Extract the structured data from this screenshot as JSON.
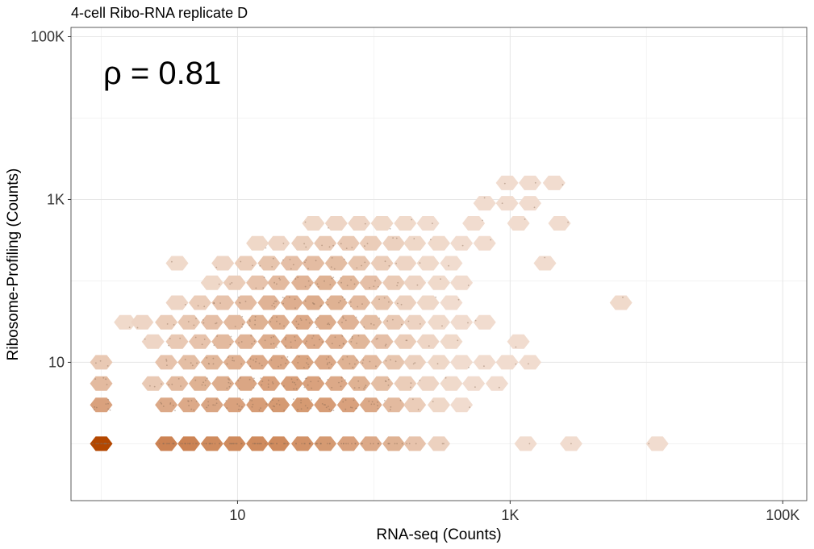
{
  "chart_data": {
    "type": "hexbin",
    "title": "4-cell Ribo-RNA replicate D",
    "xlabel": "RNA-seq (Counts)",
    "ylabel": "Ribosome-Profiling (Counts)",
    "annotation": "ρ = 0.81",
    "x_scale": "log10",
    "y_scale": "log10",
    "xlim": [
      0.6,
      150000
    ],
    "ylim": [
      0.2,
      130000
    ],
    "x_ticks": [
      {
        "value": 10,
        "label": "10"
      },
      {
        "value": 1000,
        "label": "1K"
      },
      {
        "value": 100000,
        "label": "100K"
      }
    ],
    "y_ticks": [
      {
        "value": 10,
        "label": "10"
      },
      {
        "value": 1000,
        "label": "1K"
      },
      {
        "value": 100000,
        "label": "100K"
      }
    ],
    "grid": true,
    "fill_low": "#f5e6dc",
    "fill_high": "#b34700",
    "point_color": "#8a6a55",
    "cells": [
      {
        "x": 1,
        "y": 1,
        "n": 1.0
      },
      {
        "x": 3,
        "y": 1,
        "n": 0.55
      },
      {
        "x": 4.4,
        "y": 1,
        "n": 0.55
      },
      {
        "x": 6.5,
        "y": 1,
        "n": 0.5
      },
      {
        "x": 9.5,
        "y": 1,
        "n": 0.5
      },
      {
        "x": 14,
        "y": 1,
        "n": 0.5
      },
      {
        "x": 20,
        "y": 1,
        "n": 0.5
      },
      {
        "x": 30,
        "y": 1,
        "n": 0.45
      },
      {
        "x": 44,
        "y": 1,
        "n": 0.4
      },
      {
        "x": 65,
        "y": 1,
        "n": 0.35
      },
      {
        "x": 95,
        "y": 1,
        "n": 0.3
      },
      {
        "x": 140,
        "y": 1,
        "n": 0.25
      },
      {
        "x": 200,
        "y": 1,
        "n": 0.15
      },
      {
        "x": 300,
        "y": 1,
        "n": 0.08
      },
      {
        "x": 1300,
        "y": 1,
        "n": 0.03
      },
      {
        "x": 2800,
        "y": 1,
        "n": 0.03
      },
      {
        "x": 12000,
        "y": 1,
        "n": 0.03
      },
      {
        "x": 1,
        "y": 3,
        "n": 0.35
      },
      {
        "x": 3,
        "y": 3,
        "n": 0.3
      },
      {
        "x": 4.4,
        "y": 3,
        "n": 0.3
      },
      {
        "x": 6.5,
        "y": 3,
        "n": 0.32
      },
      {
        "x": 9.5,
        "y": 3,
        "n": 0.35
      },
      {
        "x": 14,
        "y": 3,
        "n": 0.38
      },
      {
        "x": 20,
        "y": 3,
        "n": 0.4
      },
      {
        "x": 30,
        "y": 3,
        "n": 0.4
      },
      {
        "x": 44,
        "y": 3,
        "n": 0.38
      },
      {
        "x": 65,
        "y": 3,
        "n": 0.35
      },
      {
        "x": 95,
        "y": 3,
        "n": 0.3
      },
      {
        "x": 140,
        "y": 3,
        "n": 0.2
      },
      {
        "x": 200,
        "y": 3,
        "n": 0.1
      },
      {
        "x": 300,
        "y": 3,
        "n": 0.05
      },
      {
        "x": 440,
        "y": 3,
        "n": 0.03
      },
      {
        "x": 1,
        "y": 5.5,
        "n": 0.2
      },
      {
        "x": 2.4,
        "y": 5.5,
        "n": 0.12
      },
      {
        "x": 3.6,
        "y": 5.5,
        "n": 0.2
      },
      {
        "x": 5.3,
        "y": 5.5,
        "n": 0.25
      },
      {
        "x": 7.8,
        "y": 5.5,
        "n": 0.28
      },
      {
        "x": 11.5,
        "y": 5.5,
        "n": 0.32
      },
      {
        "x": 17,
        "y": 5.5,
        "n": 0.35
      },
      {
        "x": 25,
        "y": 5.5,
        "n": 0.37
      },
      {
        "x": 36,
        "y": 5.5,
        "n": 0.35
      },
      {
        "x": 53,
        "y": 5.5,
        "n": 0.3
      },
      {
        "x": 78,
        "y": 5.5,
        "n": 0.25
      },
      {
        "x": 115,
        "y": 5.5,
        "n": 0.18
      },
      {
        "x": 170,
        "y": 5.5,
        "n": 0.1
      },
      {
        "x": 250,
        "y": 5.5,
        "n": 0.06
      },
      {
        "x": 370,
        "y": 5.5,
        "n": 0.04
      },
      {
        "x": 540,
        "y": 5.5,
        "n": 0.03
      },
      {
        "x": 800,
        "y": 5.5,
        "n": 0.03
      },
      {
        "x": 1,
        "y": 10,
        "n": 0.12
      },
      {
        "x": 3,
        "y": 10,
        "n": 0.15
      },
      {
        "x": 4.4,
        "y": 10,
        "n": 0.18
      },
      {
        "x": 6.5,
        "y": 10,
        "n": 0.22
      },
      {
        "x": 9.5,
        "y": 10,
        "n": 0.26
      },
      {
        "x": 14,
        "y": 10,
        "n": 0.3
      },
      {
        "x": 20,
        "y": 10,
        "n": 0.32
      },
      {
        "x": 30,
        "y": 10,
        "n": 0.33
      },
      {
        "x": 44,
        "y": 10,
        "n": 0.3
      },
      {
        "x": 65,
        "y": 10,
        "n": 0.25
      },
      {
        "x": 95,
        "y": 10,
        "n": 0.2
      },
      {
        "x": 140,
        "y": 10,
        "n": 0.14
      },
      {
        "x": 200,
        "y": 10,
        "n": 0.08
      },
      {
        "x": 300,
        "y": 10,
        "n": 0.05
      },
      {
        "x": 440,
        "y": 10,
        "n": 0.03
      },
      {
        "x": 650,
        "y": 10,
        "n": 0.03
      },
      {
        "x": 950,
        "y": 10,
        "n": 0.03
      },
      {
        "x": 1400,
        "y": 10,
        "n": 0.03
      },
      {
        "x": 2.4,
        "y": 18,
        "n": 0.06
      },
      {
        "x": 3.6,
        "y": 18,
        "n": 0.12
      },
      {
        "x": 5.3,
        "y": 18,
        "n": 0.15
      },
      {
        "x": 7.8,
        "y": 18,
        "n": 0.2
      },
      {
        "x": 11.5,
        "y": 18,
        "n": 0.24
      },
      {
        "x": 17,
        "y": 18,
        "n": 0.28
      },
      {
        "x": 25,
        "y": 18,
        "n": 0.3
      },
      {
        "x": 36,
        "y": 18,
        "n": 0.3
      },
      {
        "x": 53,
        "y": 18,
        "n": 0.27
      },
      {
        "x": 78,
        "y": 18,
        "n": 0.22
      },
      {
        "x": 115,
        "y": 18,
        "n": 0.17
      },
      {
        "x": 170,
        "y": 18,
        "n": 0.1
      },
      {
        "x": 250,
        "y": 18,
        "n": 0.06
      },
      {
        "x": 370,
        "y": 18,
        "n": 0.04
      },
      {
        "x": 1150,
        "y": 18,
        "n": 0.03
      },
      {
        "x": 1.5,
        "y": 31,
        "n": 0.04
      },
      {
        "x": 2,
        "y": 31,
        "n": 0.06
      },
      {
        "x": 3,
        "y": 31,
        "n": 0.1
      },
      {
        "x": 4.4,
        "y": 31,
        "n": 0.13
      },
      {
        "x": 6.5,
        "y": 31,
        "n": 0.17
      },
      {
        "x": 9.5,
        "y": 31,
        "n": 0.2
      },
      {
        "x": 14,
        "y": 31,
        "n": 0.25
      },
      {
        "x": 20,
        "y": 31,
        "n": 0.28
      },
      {
        "x": 30,
        "y": 31,
        "n": 0.3
      },
      {
        "x": 44,
        "y": 31,
        "n": 0.28
      },
      {
        "x": 65,
        "y": 31,
        "n": 0.24
      },
      {
        "x": 95,
        "y": 31,
        "n": 0.18
      },
      {
        "x": 140,
        "y": 31,
        "n": 0.12
      },
      {
        "x": 200,
        "y": 31,
        "n": 0.07
      },
      {
        "x": 300,
        "y": 31,
        "n": 0.04
      },
      {
        "x": 440,
        "y": 31,
        "n": 0.03
      },
      {
        "x": 650,
        "y": 31,
        "n": 0.03
      },
      {
        "x": 3.6,
        "y": 54,
        "n": 0.06
      },
      {
        "x": 5.3,
        "y": 54,
        "n": 0.1
      },
      {
        "x": 7.8,
        "y": 54,
        "n": 0.15
      },
      {
        "x": 11.5,
        "y": 54,
        "n": 0.19
      },
      {
        "x": 17,
        "y": 54,
        "n": 0.24
      },
      {
        "x": 25,
        "y": 54,
        "n": 0.27
      },
      {
        "x": 36,
        "y": 54,
        "n": 0.28
      },
      {
        "x": 53,
        "y": 54,
        "n": 0.25
      },
      {
        "x": 78,
        "y": 54,
        "n": 0.2
      },
      {
        "x": 115,
        "y": 54,
        "n": 0.14
      },
      {
        "x": 170,
        "y": 54,
        "n": 0.08
      },
      {
        "x": 250,
        "y": 54,
        "n": 0.05
      },
      {
        "x": 370,
        "y": 54,
        "n": 0.03
      },
      {
        "x": 6500,
        "y": 54,
        "n": 0.04
      },
      {
        "x": 6.5,
        "y": 95,
        "n": 0.05
      },
      {
        "x": 9.5,
        "y": 95,
        "n": 0.1
      },
      {
        "x": 14,
        "y": 95,
        "n": 0.15
      },
      {
        "x": 20,
        "y": 95,
        "n": 0.2
      },
      {
        "x": 30,
        "y": 95,
        "n": 0.24
      },
      {
        "x": 44,
        "y": 95,
        "n": 0.25
      },
      {
        "x": 65,
        "y": 95,
        "n": 0.22
      },
      {
        "x": 95,
        "y": 95,
        "n": 0.17
      },
      {
        "x": 140,
        "y": 95,
        "n": 0.11
      },
      {
        "x": 200,
        "y": 95,
        "n": 0.06
      },
      {
        "x": 300,
        "y": 95,
        "n": 0.04
      },
      {
        "x": 440,
        "y": 95,
        "n": 0.03
      },
      {
        "x": 3.6,
        "y": 165,
        "n": 0.04
      },
      {
        "x": 7.8,
        "y": 165,
        "n": 0.06
      },
      {
        "x": 11.5,
        "y": 165,
        "n": 0.1
      },
      {
        "x": 17,
        "y": 165,
        "n": 0.14
      },
      {
        "x": 25,
        "y": 165,
        "n": 0.17
      },
      {
        "x": 36,
        "y": 165,
        "n": 0.19
      },
      {
        "x": 53,
        "y": 165,
        "n": 0.18
      },
      {
        "x": 78,
        "y": 165,
        "n": 0.14
      },
      {
        "x": 115,
        "y": 165,
        "n": 0.1
      },
      {
        "x": 170,
        "y": 165,
        "n": 0.06
      },
      {
        "x": 250,
        "y": 165,
        "n": 0.04
      },
      {
        "x": 370,
        "y": 165,
        "n": 0.03
      },
      {
        "x": 1800,
        "y": 165,
        "n": 0.03
      },
      {
        "x": 14,
        "y": 290,
        "n": 0.05
      },
      {
        "x": 20,
        "y": 290,
        "n": 0.06
      },
      {
        "x": 30,
        "y": 290,
        "n": 0.09
      },
      {
        "x": 44,
        "y": 290,
        "n": 0.12
      },
      {
        "x": 65,
        "y": 290,
        "n": 0.12
      },
      {
        "x": 95,
        "y": 290,
        "n": 0.1
      },
      {
        "x": 140,
        "y": 290,
        "n": 0.08
      },
      {
        "x": 200,
        "y": 290,
        "n": 0.05
      },
      {
        "x": 300,
        "y": 290,
        "n": 0.04
      },
      {
        "x": 440,
        "y": 290,
        "n": 0.03
      },
      {
        "x": 650,
        "y": 290,
        "n": 0.03
      },
      {
        "x": 36,
        "y": 510,
        "n": 0.05
      },
      {
        "x": 53,
        "y": 510,
        "n": 0.06
      },
      {
        "x": 78,
        "y": 510,
        "n": 0.06
      },
      {
        "x": 115,
        "y": 510,
        "n": 0.05
      },
      {
        "x": 170,
        "y": 510,
        "n": 0.04
      },
      {
        "x": 250,
        "y": 510,
        "n": 0.03
      },
      {
        "x": 540,
        "y": 510,
        "n": 0.03
      },
      {
        "x": 1150,
        "y": 510,
        "n": 0.03
      },
      {
        "x": 2300,
        "y": 510,
        "n": 0.03
      },
      {
        "x": 650,
        "y": 900,
        "n": 0.03
      },
      {
        "x": 950,
        "y": 900,
        "n": 0.03
      },
      {
        "x": 1400,
        "y": 900,
        "n": 0.03
      },
      {
        "x": 950,
        "y": 1600,
        "n": 0.03
      },
      {
        "x": 1400,
        "y": 1600,
        "n": 0.03
      },
      {
        "x": 2100,
        "y": 1600,
        "n": 0.03
      }
    ]
  }
}
